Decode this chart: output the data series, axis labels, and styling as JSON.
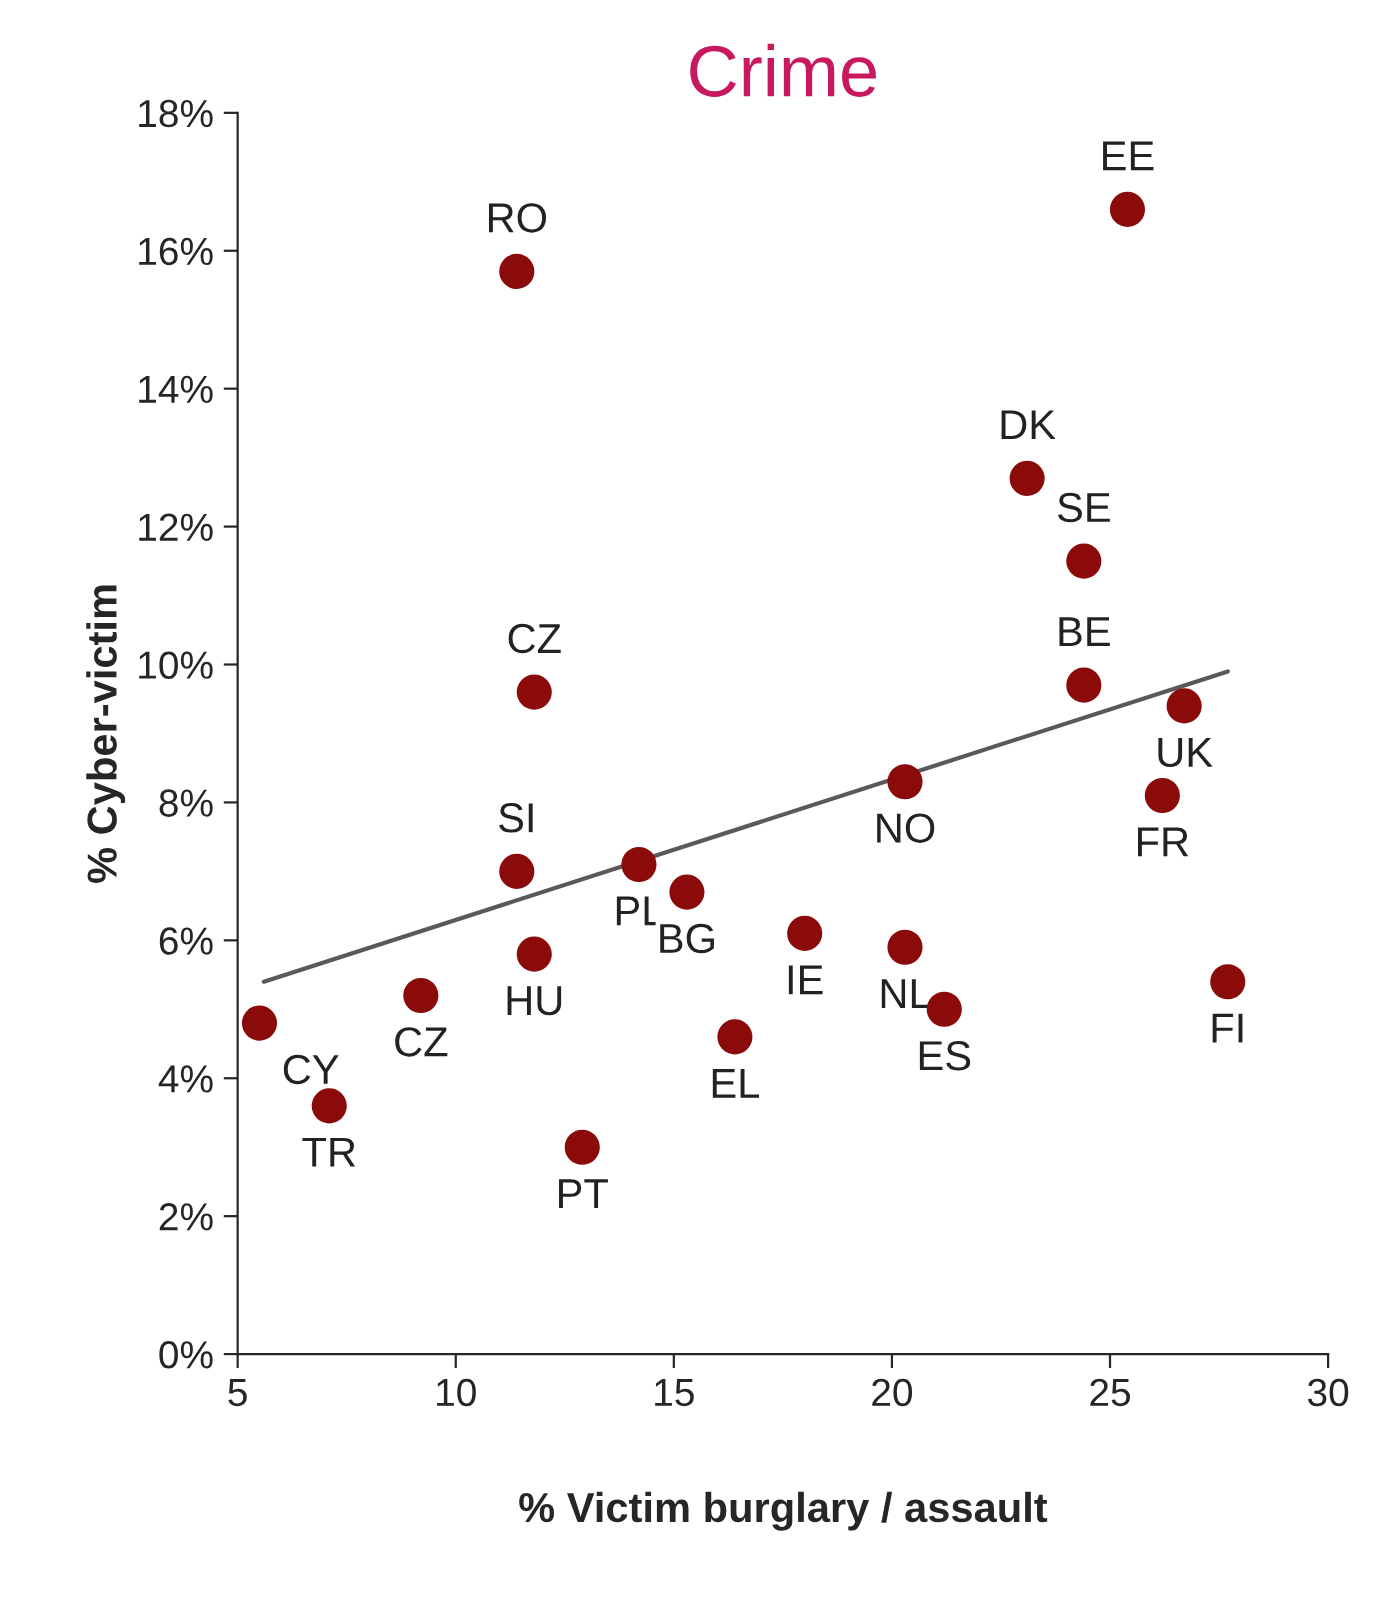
{
  "chart_data": {
    "type": "scatter",
    "title": "Crime",
    "xlabel": "% Victim burglary / assault",
    "ylabel": "% Cyber-victim",
    "xlim": [
      5,
      30
    ],
    "xticks": [
      5,
      10,
      15,
      20,
      25,
      30
    ],
    "ylim": [
      0,
      18
    ],
    "yticks": [
      {
        "value": 0,
        "label": "0%"
      },
      {
        "value": 2,
        "label": "2%"
      },
      {
        "value": 4,
        "label": "4%"
      },
      {
        "value": 6,
        "label": "6%"
      },
      {
        "value": 8,
        "label": "8%"
      },
      {
        "value": 10,
        "label": "10%"
      },
      {
        "value": 12,
        "label": "12%"
      },
      {
        "value": 14,
        "label": "14%"
      },
      {
        "value": 16,
        "label": "16%"
      },
      {
        "value": 18,
        "label": "18%"
      }
    ],
    "grid": false,
    "series": [
      {
        "color": "#8b0a0a",
        "x": [
          25.4,
          11.4,
          23.1,
          24.4,
          24.4,
          26.7,
          11.8,
          20.3,
          26.2,
          11.4,
          14.2,
          15.3,
          18.0,
          11.8,
          20.3,
          27.7,
          9.2,
          5.5,
          21.2,
          16.4,
          7.1,
          12.9
        ],
        "values": [
          16.6,
          15.7,
          12.7,
          11.5,
          9.7,
          9.4,
          9.6,
          8.3,
          8.1,
          7.0,
          7.1,
          6.7,
          6.1,
          5.8,
          5.9,
          5.4,
          5.2,
          4.8,
          5.0,
          4.6,
          3.6,
          3.0
        ],
        "marker": "circle",
        "value_labels": [
          "EE",
          "RO",
          "DK",
          "SE",
          "BE",
          "UK",
          "CZ",
          "NO",
          "FR",
          "SI",
          "PL",
          "BG",
          "IE",
          "HU",
          "NL",
          "FI",
          "CZ",
          "CY",
          "ES",
          "EL",
          "TR",
          "PT"
        ]
      },
      {
        "type": "line",
        "marker": "none",
        "color": "#595959",
        "x": [
          5.6,
          27.7
        ],
        "values": [
          5.4,
          9.9
        ]
      }
    ]
  }
}
